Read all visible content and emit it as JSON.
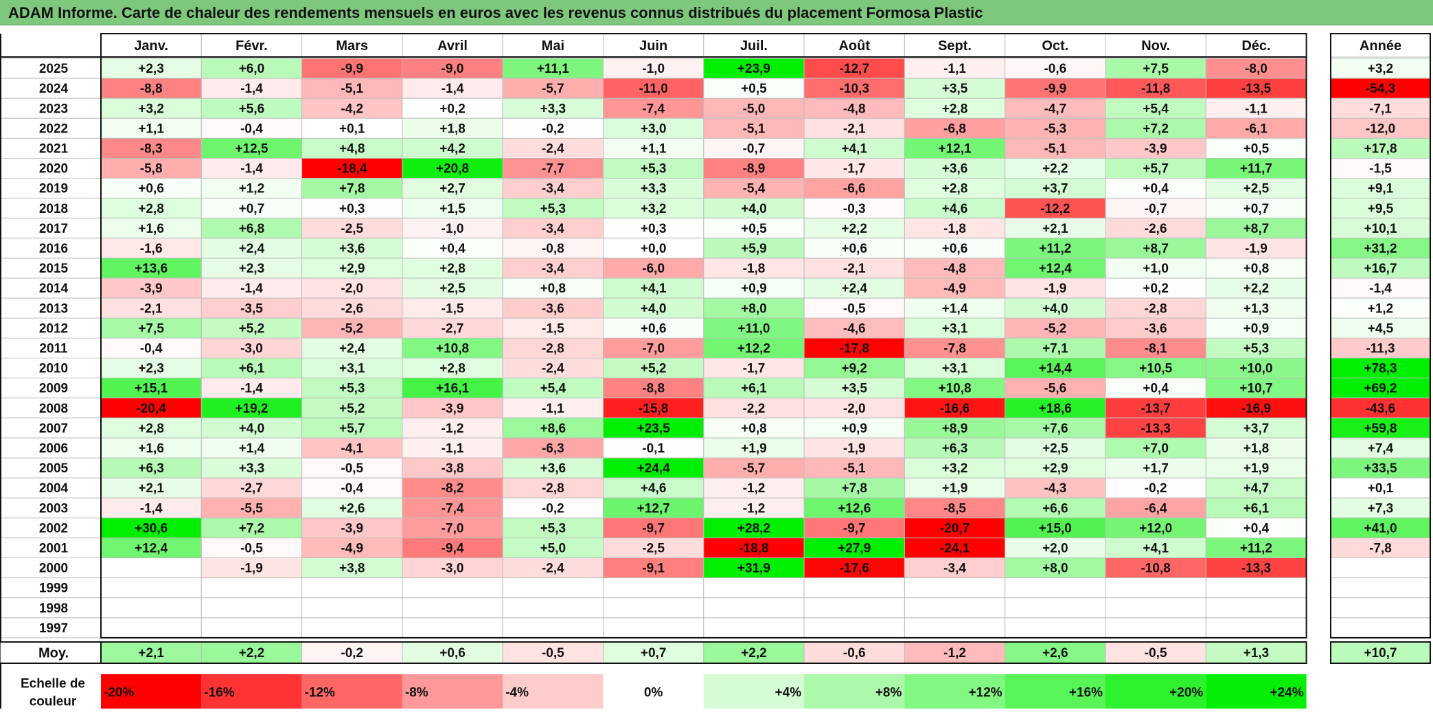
{
  "title": "ADAM Informe. Carte de chaleur des rendements mensuels en euros avec les revenus connus distribués du placement Formosa Plastic",
  "chart_data": {
    "type": "heatmap",
    "months": [
      "Janv.",
      "Févr.",
      "Mars",
      "Avril",
      "Mai",
      "Juin",
      "Juil.",
      "Août",
      "Sept.",
      "Oct.",
      "Nov.",
      "Déc."
    ],
    "year_header": "Année",
    "average_label": "Moy.",
    "scale_label": [
      "Echelle de",
      "couleur"
    ],
    "colors": {
      "negative": "#ff0000",
      "zero": "#ffffff",
      "positive": "#00ee00"
    },
    "rows": [
      {
        "year": "2025",
        "months": [
          "+2,3",
          "+6,0",
          "-9,9",
          "-9,0",
          "+11,1",
          "-1,0",
          "+23,9",
          "-12,7",
          "-1,1",
          "-0,6",
          "+7,5",
          "-8,0"
        ],
        "annual": "+3,2"
      },
      {
        "year": "2024",
        "months": [
          "-8,8",
          "-1,4",
          "-5,1",
          "-1,4",
          "-5,7",
          "-11,0",
          "+0,5",
          "-10,3",
          "+3,5",
          "-9,9",
          "-11,8",
          "-13,5"
        ],
        "annual": "-54,3"
      },
      {
        "year": "2023",
        "months": [
          "+3,2",
          "+5,6",
          "-4,2",
          "+0,2",
          "+3,3",
          "-7,4",
          "-5,0",
          "-4,8",
          "+2,8",
          "-4,7",
          "+5,4",
          "-1,1"
        ],
        "annual": "-7,1"
      },
      {
        "year": "2022",
        "months": [
          "+1,1",
          "-0,4",
          "+0,1",
          "+1,8",
          "-0,2",
          "+3,0",
          "-5,1",
          "-2,1",
          "-6,8",
          "-5,3",
          "+7,2",
          "-6,1"
        ],
        "annual": "-12,0"
      },
      {
        "year": "2021",
        "months": [
          "-8,3",
          "+12,5",
          "+4,8",
          "+4,2",
          "-2,4",
          "+1,1",
          "-0,7",
          "+4,1",
          "+12,1",
          "-5,1",
          "-3,9",
          "+0,5"
        ],
        "annual": "+17,8"
      },
      {
        "year": "2020",
        "months": [
          "-5,8",
          "-1,4",
          "-18,4",
          "+20,8",
          "-7,7",
          "+5,3",
          "-8,9",
          "-1,7",
          "+3,6",
          "+2,2",
          "+5,7",
          "+11,7"
        ],
        "annual": "-1,5"
      },
      {
        "year": "2019",
        "months": [
          "+0,6",
          "+1,2",
          "+7,8",
          "+2,7",
          "-3,4",
          "+3,3",
          "-5,4",
          "-6,6",
          "+2,8",
          "+3,7",
          "+0,4",
          "+2,5"
        ],
        "annual": "+9,1"
      },
      {
        "year": "2018",
        "months": [
          "+2,8",
          "+0,7",
          "+0,3",
          "+1,5",
          "+5,3",
          "+3,2",
          "+4,0",
          "-0,3",
          "+4,6",
          "-12,2",
          "-0,7",
          "+0,7"
        ],
        "annual": "+9,5"
      },
      {
        "year": "2017",
        "months": [
          "+1,6",
          "+6,8",
          "-2,5",
          "-1,0",
          "-3,4",
          "+0,3",
          "+0,5",
          "+2,2",
          "-1,8",
          "+2,1",
          "-2,6",
          "+8,7"
        ],
        "annual": "+10,1"
      },
      {
        "year": "2016",
        "months": [
          "-1,6",
          "+2,4",
          "+3,6",
          "+0,4",
          "-0,8",
          "+0,0",
          "+5,9",
          "+0,6",
          "+0,6",
          "+11,2",
          "+8,7",
          "-1,9"
        ],
        "annual": "+31,2"
      },
      {
        "year": "2015",
        "months": [
          "+13,6",
          "+2,3",
          "+2,9",
          "+2,8",
          "-3,4",
          "-6,0",
          "-1,8",
          "-2,1",
          "-4,8",
          "+12,4",
          "+1,0",
          "+0,8"
        ],
        "annual": "+16,7"
      },
      {
        "year": "2014",
        "months": [
          "-3,9",
          "-1,4",
          "-2,0",
          "+2,5",
          "+0,8",
          "+4,1",
          "+0,9",
          "+2,4",
          "-4,9",
          "-1,9",
          "+0,2",
          "+2,2"
        ],
        "annual": "-1,4"
      },
      {
        "year": "2013",
        "months": [
          "-2,1",
          "-3,5",
          "-2,6",
          "-1,5",
          "-3,6",
          "+4,0",
          "+8,0",
          "-0,5",
          "+1,4",
          "+4,0",
          "-2,8",
          "+1,3"
        ],
        "annual": "+1,2"
      },
      {
        "year": "2012",
        "months": [
          "+7,5",
          "+5,2",
          "-5,2",
          "-2,7",
          "-1,5",
          "+0,6",
          "+11,0",
          "-4,6",
          "+3,1",
          "-5,2",
          "-3,6",
          "+0,9"
        ],
        "annual": "+4,5"
      },
      {
        "year": "2011",
        "months": [
          "-0,4",
          "-3,0",
          "+2,4",
          "+10,8",
          "-2,8",
          "-7,0",
          "+12,2",
          "-17,8",
          "-7,8",
          "+7,1",
          "-8,1",
          "+5,3"
        ],
        "annual": "-11,3"
      },
      {
        "year": "2010",
        "months": [
          "+2,3",
          "+6,1",
          "+3,1",
          "+2,8",
          "-2,4",
          "+5,2",
          "-1,7",
          "+9,2",
          "+3,1",
          "+14,4",
          "+10,5",
          "+10,0"
        ],
        "annual": "+78,3"
      },
      {
        "year": "2009",
        "months": [
          "+15,1",
          "-1,4",
          "+5,3",
          "+16,1",
          "+5,4",
          "-8,8",
          "+6,1",
          "+3,5",
          "+10,8",
          "-5,6",
          "+0,4",
          "+10,7"
        ],
        "annual": "+69,2"
      },
      {
        "year": "2008",
        "months": [
          "-20,4",
          "+19,2",
          "+5,2",
          "-3,9",
          "-1,1",
          "-15,8",
          "-2,2",
          "-2,0",
          "-16,6",
          "+18,6",
          "-13,7",
          "-16,9"
        ],
        "annual": "-43,6"
      },
      {
        "year": "2007",
        "months": [
          "+2,8",
          "+4,0",
          "+5,7",
          "-1,2",
          "+8,6",
          "+23,5",
          "+0,8",
          "+0,9",
          "+8,9",
          "+7,6",
          "-13,3",
          "+3,7"
        ],
        "annual": "+59,8"
      },
      {
        "year": "2006",
        "months": [
          "+1,6",
          "+1,4",
          "-4,1",
          "-1,1",
          "-6,3",
          "-0,1",
          "+1,9",
          "-1,9",
          "+6,3",
          "+2,5",
          "+7,0",
          "+1,8"
        ],
        "annual": "+7,4"
      },
      {
        "year": "2005",
        "months": [
          "+6,3",
          "+3,3",
          "-0,5",
          "-3,8",
          "+3,6",
          "+24,4",
          "-5,7",
          "-5,1",
          "+3,2",
          "+2,9",
          "+1,7",
          "+1,9"
        ],
        "annual": "+33,5"
      },
      {
        "year": "2004",
        "months": [
          "+2,1",
          "-2,7",
          "-0,4",
          "-8,2",
          "-2,8",
          "+4,6",
          "-1,2",
          "+7,8",
          "+1,9",
          "-4,3",
          "-0,2",
          "+4,7"
        ],
        "annual": "+0,1"
      },
      {
        "year": "2003",
        "months": [
          "-1,4",
          "-5,5",
          "+2,6",
          "-7,4",
          "-0,2",
          "+12,7",
          "-1,2",
          "+12,6",
          "-8,5",
          "+6,6",
          "-6,4",
          "+6,1"
        ],
        "annual": "+7,3"
      },
      {
        "year": "2002",
        "months": [
          "+30,6",
          "+7,2",
          "-3,9",
          "-7,0",
          "+5,3",
          "-9,7",
          "+28,2",
          "-9,7",
          "-20,7",
          "+15,0",
          "+12,0",
          "+0,4"
        ],
        "annual": "+41,0"
      },
      {
        "year": "2001",
        "months": [
          "+12,4",
          "-0,5",
          "-4,9",
          "-9,4",
          "+5,0",
          "-2,5",
          "-18,8",
          "+27,9",
          "-24,1",
          "+2,0",
          "+4,1",
          "+11,2"
        ],
        "annual": "-7,8"
      },
      {
        "year": "2000",
        "months": [
          "",
          "-1,9",
          "+3,8",
          "-3,0",
          "-2,4",
          "-9,1",
          "+31,9",
          "-17,6",
          "-3,4",
          "+8,0",
          "-10,8",
          "-13,3"
        ],
        "annual": ""
      },
      {
        "year": "1999",
        "months": [
          "",
          "",
          "",
          "",
          "",
          "",
          "",
          "",
          "",
          "",
          "",
          ""
        ],
        "annual": ""
      },
      {
        "year": "1998",
        "months": [
          "",
          "",
          "",
          "",
          "",
          "",
          "",
          "",
          "",
          "",
          "",
          ""
        ],
        "annual": ""
      },
      {
        "year": "1997",
        "months": [
          "",
          "",
          "",
          "",
          "",
          "",
          "",
          "",
          "",
          "",
          "",
          ""
        ],
        "annual": ""
      }
    ],
    "average": {
      "months": [
        "+2,1",
        "+2,2",
        "-0,2",
        "+0,6",
        "-0,5",
        "+0,7",
        "+2,2",
        "-0,6",
        "-1,2",
        "+2,6",
        "-0,5",
        "+1,3"
      ],
      "annual": "+10,7"
    },
    "scale": [
      {
        "label": "-20%",
        "value": -20
      },
      {
        "label": "-16%",
        "value": -16
      },
      {
        "label": "-12%",
        "value": -12
      },
      {
        "label": "-8%",
        "value": -8
      },
      {
        "label": "-4%",
        "value": -4
      },
      {
        "label": "0%",
        "value": 0
      },
      {
        "label": "+4%",
        "value": 4
      },
      {
        "label": "+8%",
        "value": 8
      },
      {
        "label": "+12%",
        "value": 12
      },
      {
        "label": "+16%",
        "value": 16
      },
      {
        "label": "+20%",
        "value": 20
      },
      {
        "label": "+24%",
        "value": 24
      }
    ]
  }
}
